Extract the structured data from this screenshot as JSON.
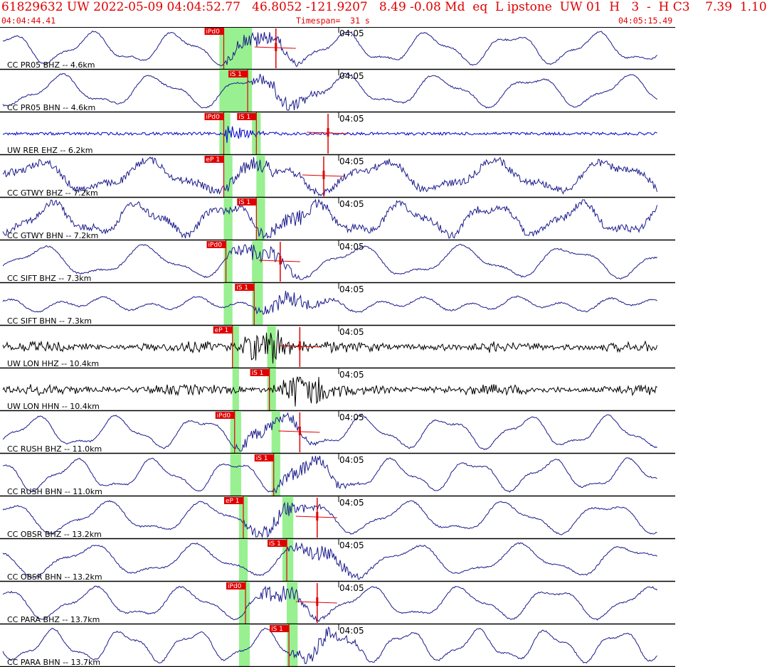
{
  "header": {
    "title": "61829632 UW 2022-05-09 04:04:52.77   46.8052 -121.9207   8.49 -0.08 Md  eq  L ipstone  UW 01  H   3  -  H C3    7.39  1.10",
    "start_time": "04:04:44.41",
    "timespan": "Timespan=  31 s",
    "end_time": "04:05:15.49"
  },
  "colors": {
    "trace": "#1a1a8c",
    "trace_blue": "#0000cc",
    "trace_black": "#000000",
    "pick": "#e00000",
    "window": "#98f090",
    "separator": "#000000"
  },
  "chart_data": {
    "type": "line",
    "title": "61829632 UW 2022-05-09 04:04:52.77   46.8052 -121.9207   8.49 -0.08 Md  eq  L ipstone  UW 01  H   3  -  H C3    7.39  1.10",
    "xlabel": "",
    "ylabel": "",
    "x_start": "04:04:44.41",
    "x_end": "04:05:15.49",
    "xlim": [
      0,
      31.08
    ],
    "x_units": "seconds after 04:04:44.41",
    "tick_label": "04:05",
    "tick_second": 15.59,
    "grid": false,
    "series": [
      {
        "name": "CC PR05 BHZ -- 4.6km",
        "color": "#1a1a8c",
        "picks": [
          {
            "label": "iPd0",
            "t": 10.3
          }
        ],
        "windows": [
          10.1,
          11.3
        ],
        "s_window": [
          11.3,
          11.6
        ],
        "coda_t": 12.7,
        "style": "smooth"
      },
      {
        "name": "CC PR05 BHN -- 4.6km",
        "color": "#1a1a8c",
        "picks": [
          {
            "label": "iS 1",
            "t": 11.4
          }
        ],
        "windows": [
          10.1,
          11.3
        ],
        "s_window": [
          11.3,
          11.6
        ],
        "style": "smooth"
      },
      {
        "name": "UW RER EHZ -- 6.2km",
        "color": "#0000cc",
        "picks": [
          {
            "label": "iPd0",
            "t": 10.3
          },
          {
            "label": "iS 1",
            "t": 11.8
          }
        ],
        "windows": [
          10.1,
          10.6
        ],
        "s_window": [
          11.6,
          12.0
        ],
        "coda_t": 15.1,
        "style": "noise"
      },
      {
        "name": "CC GTWY BHZ -- 7.2km",
        "color": "#1a1a8c",
        "picks": [
          {
            "label": "eP 1",
            "t": 10.3
          }
        ],
        "windows": [
          10.3,
          10.7
        ],
        "s_window": [
          11.8,
          12.2
        ],
        "coda_t": 14.9,
        "style": "noisy-smooth"
      },
      {
        "name": "CC GTWY BHN -- 7.2km",
        "color": "#1a1a8c",
        "picks": [
          {
            "label": "iS 1",
            "t": 11.8
          }
        ],
        "windows": [
          10.3,
          10.7
        ],
        "s_window": [
          11.8,
          12.2
        ],
        "style": "noisy-smooth"
      },
      {
        "name": "CC SIFT BHZ -- 7.3km",
        "color": "#1a1a8c",
        "picks": [
          {
            "label": "iPd0",
            "t": 10.4
          }
        ],
        "windows": [
          10.3,
          10.7
        ],
        "s_window": [
          11.6,
          12.1
        ],
        "coda_t": 12.9,
        "style": "smooth"
      },
      {
        "name": "CC SIFT BHN -- 7.3km",
        "color": "#1a1a8c",
        "picks": [
          {
            "label": "iS 1",
            "t": 11.7
          }
        ],
        "windows": [
          10.3,
          10.7
        ],
        "s_window": [
          11.6,
          12.1
        ],
        "style": "smooth-low"
      },
      {
        "name": "UW LON HHZ -- 10.4km",
        "color": "#000000",
        "picks": [
          {
            "label": "eP 1",
            "t": 10.7
          }
        ],
        "windows": [
          10.7,
          11.0
        ],
        "s_window": [
          12.3,
          12.7
        ],
        "coda_t": 13.8,
        "style": "dense"
      },
      {
        "name": "UW LON HHN -- 10.4km",
        "color": "#000000",
        "picks": [
          {
            "label": "iS 1",
            "t": 12.4
          }
        ],
        "windows": [
          10.7,
          11.0
        ],
        "s_window": [
          12.3,
          12.7
        ],
        "style": "dense"
      },
      {
        "name": "CC RUSH BHZ -- 11.0km",
        "color": "#1a1a8c",
        "picks": [
          {
            "label": "iPd0",
            "t": 10.8
          }
        ],
        "windows": [
          10.6,
          11.1
        ],
        "s_window": [
          12.5,
          12.9
        ],
        "coda_t": 13.8,
        "style": "smooth"
      },
      {
        "name": "CC RUSH BHN -- 11.0km",
        "color": "#1a1a8c",
        "picks": [
          {
            "label": "iS 1",
            "t": 12.6
          }
        ],
        "windows": [
          10.6,
          11.1
        ],
        "s_window": [
          12.5,
          12.9
        ],
        "style": "smooth"
      },
      {
        "name": "CC OBSR BHZ -- 13.2km",
        "color": "#1a1a8c",
        "picks": [
          {
            "label": "eP 1",
            "t": 11.2
          }
        ],
        "windows": [
          11.0,
          11.4
        ],
        "s_window": [
          13.0,
          13.5
        ],
        "coda_t": 14.6,
        "style": "smooth"
      },
      {
        "name": "CC OBSR BHN -- 13.2km",
        "color": "#1a1a8c",
        "picks": [
          {
            "label": "iS 1",
            "t": 13.2
          }
        ],
        "windows": [
          11.0,
          11.4
        ],
        "s_window": [
          13.0,
          13.5
        ],
        "style": "smooth"
      },
      {
        "name": "CC PARA BHZ -- 13.7km",
        "color": "#1a1a8c",
        "picks": [
          {
            "label": "iPd0",
            "t": 11.3
          }
        ],
        "windows": [
          11.0,
          11.5
        ],
        "s_window": [
          13.2,
          13.7
        ],
        "coda_t": 14.6,
        "style": "smooth"
      },
      {
        "name": "CC PARA BHN -- 13.7km",
        "color": "#1a1a8c",
        "picks": [
          {
            "label": "iS 1",
            "t": 13.3
          }
        ],
        "windows": [
          11.0,
          11.5
        ],
        "s_window": [
          13.2,
          13.7
        ],
        "style": "smooth"
      }
    ]
  }
}
